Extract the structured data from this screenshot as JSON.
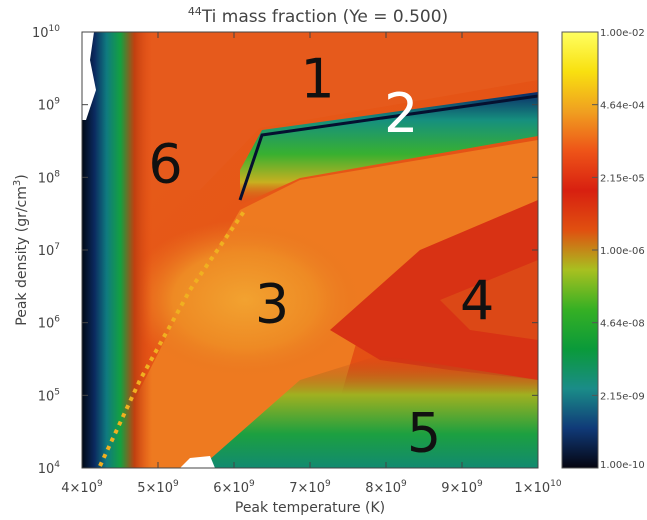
{
  "chart_data": {
    "type": "heatmap",
    "title_prefix": "44",
    "title_main": "Ti mass fraction (Ye = 0.500)",
    "xlabel": "Peak temperature (K)",
    "ylabel_main": "Peak density (gr/cm",
    "ylabel_sup": "3",
    "ylabel_end": ")",
    "x_scale": "linear",
    "y_scale": "log",
    "xlim": [
      4000000000.0,
      10000000000.0
    ],
    "ylim": [
      10000.0,
      10000000000.0
    ],
    "x_ticks": [
      {
        "value": 4000000000.0,
        "mant": "4×10",
        "exp": "9"
      },
      {
        "value": 5000000000.0,
        "mant": "5×10",
        "exp": "9"
      },
      {
        "value": 6000000000.0,
        "mant": "6×10",
        "exp": "9"
      },
      {
        "value": 7000000000.0,
        "mant": "7×10",
        "exp": "9"
      },
      {
        "value": 8000000000.0,
        "mant": "8×10",
        "exp": "9"
      },
      {
        "value": 9000000000.0,
        "mant": "9×10",
        "exp": "9"
      },
      {
        "value": 10000000000.0,
        "mant": "1×10",
        "exp": "10"
      }
    ],
    "y_ticks": [
      {
        "value": 10000.0,
        "mant": "10",
        "exp": "4"
      },
      {
        "value": 100000.0,
        "mant": "10",
        "exp": "5"
      },
      {
        "value": 1000000.0,
        "mant": "10",
        "exp": "6"
      },
      {
        "value": 10000000.0,
        "mant": "10",
        "exp": "7"
      },
      {
        "value": 100000000.0,
        "mant": "10",
        "exp": "8"
      },
      {
        "value": 1000000000.0,
        "mant": "10",
        "exp": "9"
      },
      {
        "value": 10000000000.0,
        "mant": "10",
        "exp": "10"
      }
    ],
    "colorbar": {
      "scale": "log",
      "range": [
        1e-10,
        0.01
      ],
      "ticks": [
        {
          "value": 0.01,
          "label": "1.00e-02"
        },
        {
          "value": 0.000464,
          "label": "4.64e-04"
        },
        {
          "value": 2.15e-05,
          "label": "2.15e-05"
        },
        {
          "value": 1e-06,
          "label": "1.00e-06"
        },
        {
          "value": 4.64e-08,
          "label": "4.64e-08"
        },
        {
          "value": 2.15e-09,
          "label": "2.15e-09"
        },
        {
          "value": 1e-10,
          "label": "1.00e-10"
        }
      ],
      "colors": [
        "#050510",
        "#103a78",
        "#1a8c88",
        "#0a9a3a",
        "#36b024",
        "#a8c020",
        "#e05010",
        "#d82010",
        "#ee5418",
        "#f0a020",
        "#f8e010",
        "#ffff60"
      ]
    },
    "regions": [
      {
        "label": "1",
        "x": 7100000000.0,
        "y": 1250000000.0,
        "color": "#111111"
      },
      {
        "label": "2",
        "x": 8200000000.0,
        "y": 420000000.0,
        "color": "#ffffff"
      },
      {
        "label": "3",
        "x": 6500000000.0,
        "y": 1000000.0,
        "color": "#111111"
      },
      {
        "label": "4",
        "x": 9200000000.0,
        "y": 1100000.0,
        "color": "#111111"
      },
      {
        "label": "5",
        "x": 8500000000.0,
        "y": 17000.0,
        "color": "#111111"
      },
      {
        "label": "6",
        "x": 5100000000.0,
        "y": 85000000.0,
        "color": "#111111"
      }
    ]
  }
}
